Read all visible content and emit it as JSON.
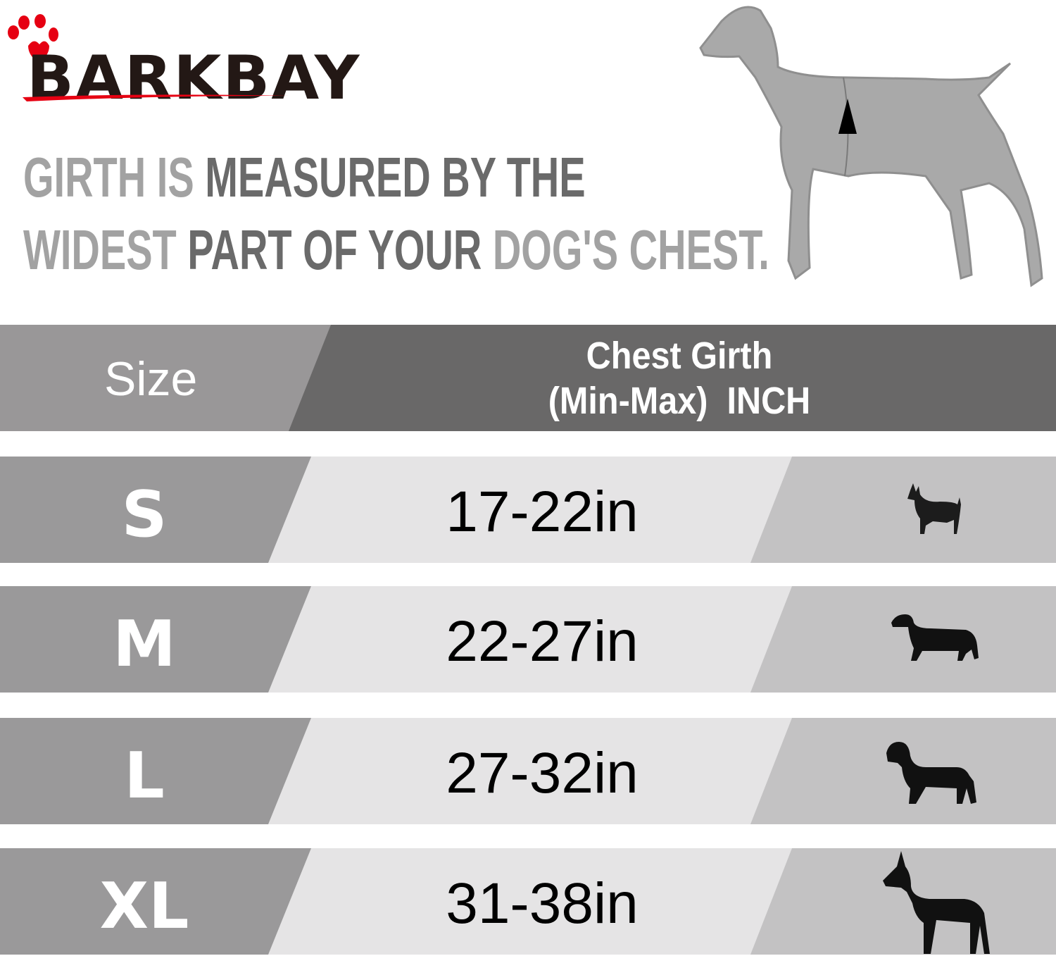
{
  "brand": {
    "name": "BARKBAY",
    "paw_color": "#e60012",
    "text_color": "#231815"
  },
  "headline": {
    "line1": [
      {
        "text": "GIRTH IS ",
        "tone": "light"
      },
      {
        "text": "MEASURED BY THE",
        "tone": "dark"
      }
    ],
    "line2": [
      {
        "text": "WIDEST ",
        "tone": "light"
      },
      {
        "text": "PART OF YOUR ",
        "tone": "dark"
      },
      {
        "text": "DOG'S CHEST.",
        "tone": "light"
      }
    ]
  },
  "table": {
    "header": {
      "size": "Size",
      "girth_line1": "Chest Girth",
      "girth_line2": "(Min-Max)  INCH"
    },
    "rows": [
      {
        "size": "S",
        "girth": "17-22in",
        "icon": "chihuahua-icon"
      },
      {
        "size": "M",
        "girth": "22-27in",
        "icon": "dachshund-icon"
      },
      {
        "size": "L",
        "girth": "27-32in",
        "icon": "labrador-icon"
      },
      {
        "size": "XL",
        "girth": "31-38in",
        "icon": "great-dane-icon"
      }
    ]
  },
  "colors": {
    "header_left": "#999798",
    "header_right": "#696868",
    "row_left": "#9a999a",
    "row_mid": "#e5e4e5",
    "row_right": "#c3c2c3"
  }
}
